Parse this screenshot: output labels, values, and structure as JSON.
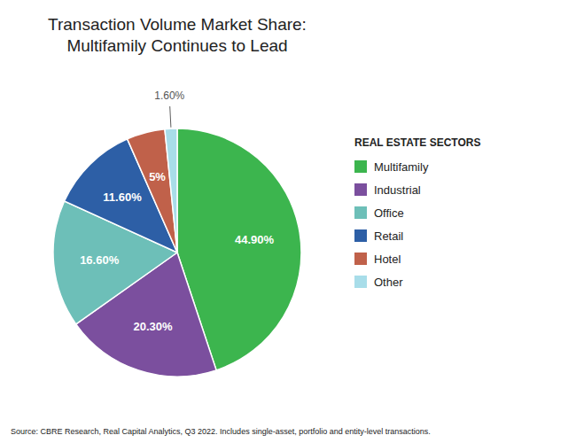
{
  "chart_data": {
    "type": "pie",
    "title": "Transaction Volume Market Share:\nMultifamily Continues to Lead",
    "legend_title": "REAL ESTATE SECTORS",
    "categories": [
      "Multifamily",
      "Industrial",
      "Office",
      "Retail",
      "Hotel",
      "Other"
    ],
    "values": [
      44.9,
      20.3,
      16.6,
      11.6,
      5.0,
      1.6
    ],
    "value_labels": [
      "44.90%",
      "20.30%",
      "16.60%",
      "11.60%",
      "5%",
      "1.60%"
    ],
    "colors": [
      "#3cb54e",
      "#7b4f9e",
      "#6dbfb8",
      "#2d5fa6",
      "#c0614a",
      "#a8dde9"
    ],
    "data_labels": true,
    "legend": "right",
    "source": "Source: CBRE Research, Real Capital Analytics, Q3 2022. Includes single-asset, portfolio and entity-level transactions."
  }
}
